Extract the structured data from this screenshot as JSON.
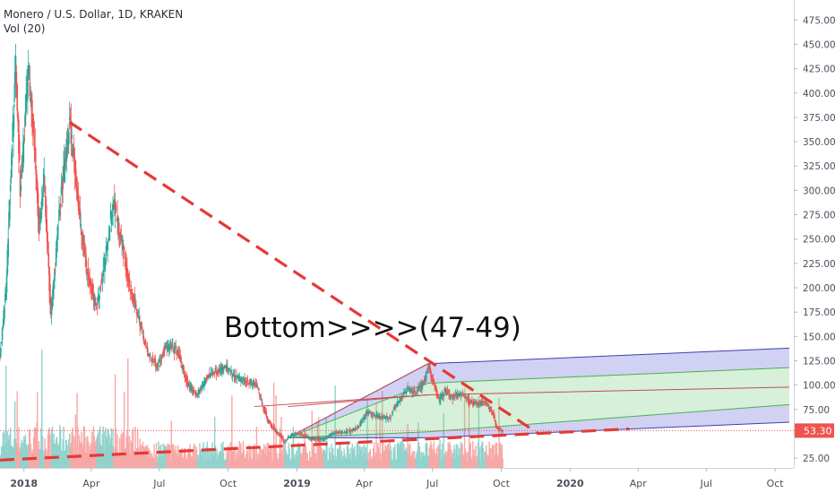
{
  "header": {
    "symbol_line": "Monero / U.S. Dollar, 1D, KRAKEN",
    "volume_line": "Vol (20)"
  },
  "colors": {
    "up_candle": "#26a69a",
    "down_candle": "#ef5350",
    "trend_line": "#e53935",
    "channel_blue": "#6f6fd9",
    "channel_green": "#7fd18a",
    "channel_mid": "#c44e52",
    "price_tag": "#ef5350"
  },
  "annotation": "Bottom>>>>(47-49)",
  "chart_data": {
    "type": "candlestick",
    "title": "Monero / U.S. Dollar, 1D, KRAKEN",
    "indicator": "Vol (20)",
    "last_price": "53.30",
    "y_axis": {
      "ticks": [
        25,
        50,
        75,
        100,
        125,
        150,
        175,
        200,
        225,
        250,
        275,
        300,
        325,
        350,
        375,
        400,
        425,
        450,
        475
      ],
      "tick_labels": [
        "25.00",
        "50.00",
        "75.00",
        "100.00",
        "125.00",
        "150.00",
        "175.00",
        "200.00",
        "225.00",
        "250.00",
        "275.00",
        "300.00",
        "325.00",
        "350.00",
        "375.00",
        "400.00",
        "425.00",
        "450.00",
        "475.00"
      ],
      "ylim": [
        15,
        490
      ]
    },
    "x_axis": {
      "tick_dates": [
        "2018-01-01",
        "2018-04-01",
        "2018-07-01",
        "2018-10-01",
        "2019-01-01",
        "2019-04-01",
        "2019-07-01",
        "2019-10-01",
        "2020-01-01",
        "2020-04-01",
        "2020-07-01",
        "2020-10-01"
      ],
      "tick_labels": [
        "2018",
        "Apr",
        "Jul",
        "Oct",
        "2019",
        "Apr",
        "Jul",
        "Oct",
        "2020",
        "Apr",
        "Jul",
        "Oct"
      ],
      "bold_labels": [
        "2018",
        "2019",
        "2020"
      ],
      "xlim": [
        "2017-11-30",
        "2020-10-26"
      ]
    },
    "price_anchors": [
      [
        "2017-11-30",
        130
      ],
      [
        "2017-12-08",
        200
      ],
      [
        "2017-12-15",
        330
      ],
      [
        "2017-12-21",
        430
      ],
      [
        "2017-12-27",
        300
      ],
      [
        "2018-01-07",
        420
      ],
      [
        "2018-01-14",
        360
      ],
      [
        "2018-01-21",
        260
      ],
      [
        "2018-01-28",
        310
      ],
      [
        "2018-02-06",
        170
      ],
      [
        "2018-02-14",
        250
      ],
      [
        "2018-02-22",
        310
      ],
      [
        "2018-03-03",
        370
      ],
      [
        "2018-03-09",
        330
      ],
      [
        "2018-03-18",
        260
      ],
      [
        "2018-03-28",
        210
      ],
      [
        "2018-04-08",
        180
      ],
      [
        "2018-04-20",
        230
      ],
      [
        "2018-04-30",
        290
      ],
      [
        "2018-05-10",
        255
      ],
      [
        "2018-05-22",
        200
      ],
      [
        "2018-06-05",
        165
      ],
      [
        "2018-06-16",
        130
      ],
      [
        "2018-06-28",
        120
      ],
      [
        "2018-07-10",
        140
      ],
      [
        "2018-07-25",
        135
      ],
      [
        "2018-08-08",
        100
      ],
      [
        "2018-08-20",
        90
      ],
      [
        "2018-09-05",
        110
      ],
      [
        "2018-09-15",
        115
      ],
      [
        "2018-09-28",
        118
      ],
      [
        "2018-10-10",
        108
      ],
      [
        "2018-10-25",
        105
      ],
      [
        "2018-11-08",
        100
      ],
      [
        "2018-11-15",
        82
      ],
      [
        "2018-11-24",
        62
      ],
      [
        "2018-12-05",
        52
      ],
      [
        "2018-12-15",
        42
      ],
      [
        "2018-12-25",
        49
      ],
      [
        "2019-01-05",
        50
      ],
      [
        "2019-01-20",
        45
      ],
      [
        "2019-02-05",
        44
      ],
      [
        "2019-02-20",
        51
      ],
      [
        "2019-03-08",
        52
      ],
      [
        "2019-03-20",
        54
      ],
      [
        "2019-04-05",
        72
      ],
      [
        "2019-04-20",
        67
      ],
      [
        "2019-05-05",
        66
      ],
      [
        "2019-05-15",
        82
      ],
      [
        "2019-05-28",
        96
      ],
      [
        "2019-06-08",
        92
      ],
      [
        "2019-06-20",
        104
      ],
      [
        "2019-06-26",
        120
      ],
      [
        "2019-07-03",
        100
      ],
      [
        "2019-07-10",
        85
      ],
      [
        "2019-07-18",
        95
      ],
      [
        "2019-07-28",
        87
      ],
      [
        "2019-08-08",
        92
      ],
      [
        "2019-08-20",
        83
      ],
      [
        "2019-08-30",
        80
      ],
      [
        "2019-09-10",
        82
      ],
      [
        "2019-09-20",
        72
      ],
      [
        "2019-09-24",
        57
      ],
      [
        "2019-10-01",
        54
      ],
      [
        "2019-10-03",
        53.3
      ]
    ],
    "trend_lines": [
      {
        "role": "resistance",
        "style": "dashed",
        "points": [
          [
            "2018-03-03",
            370
          ],
          [
            "2019-11-20",
            50
          ]
        ]
      },
      {
        "role": "support",
        "style": "dashed",
        "points": [
          [
            "2017-11-30",
            23
          ],
          [
            "2020-03-20",
            55
          ]
        ]
      }
    ],
    "channel": {
      "start_date": "2018-12-20",
      "kink_date": "2019-06-25",
      "end_date": "2020-10-20",
      "levels": {
        "bottom": [
          [
            46,
            46
          ],
          [
            58,
            62
          ]
        ],
        "lower": [
          [
            46,
            52
          ],
          [
            63,
            80
          ]
        ],
        "middle": [
          [
            78,
            90
          ],
          [
            90,
            98
          ]
        ],
        "upper": [
          [
            46,
            102
          ],
          [
            108,
            118
          ]
        ],
        "top": [
          [
            46,
            122
          ],
          [
            125,
            138
          ]
        ]
      }
    },
    "price_line": 53.3
  }
}
